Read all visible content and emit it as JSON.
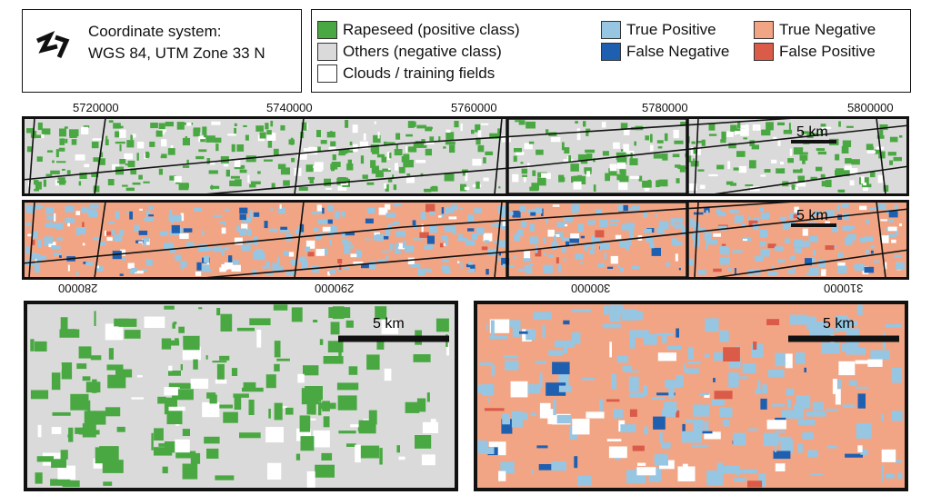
{
  "crs": {
    "title": "Coordinate system:",
    "value": "WGS 84, UTM Zone 33 N",
    "north_icon": "north-arrow-icon"
  },
  "legend": {
    "items": [
      {
        "label": "Rapeseed (positive class)",
        "color": "#4aa843"
      },
      {
        "label": "Others (negative class)",
        "color": "#dadada"
      },
      {
        "label": "Clouds / training fields",
        "color": "#ffffff"
      },
      {
        "label": "True Positive",
        "color": "#96c6e2"
      },
      {
        "label": "False Negative",
        "color": "#1f5fb0"
      },
      {
        "label": "True Negative",
        "color": "#f2a585"
      },
      {
        "label": "False Positive",
        "color": "#d95b48"
      }
    ]
  },
  "axes": {
    "top_ticks": [
      "5720000",
      "5740000",
      "5760000",
      "5780000",
      "5800000"
    ],
    "bottom_ticks": [
      "280000",
      "290000",
      "300000",
      "310000"
    ]
  },
  "scalebar": {
    "label": "5 km"
  },
  "colors": {
    "background_gray": "#dadada",
    "true_negative": "#f2a585",
    "rapeseed": "#4aa843",
    "true_positive": "#96c6e2",
    "false_negative": "#1f5fb0",
    "false_positive": "#d95b48"
  }
}
